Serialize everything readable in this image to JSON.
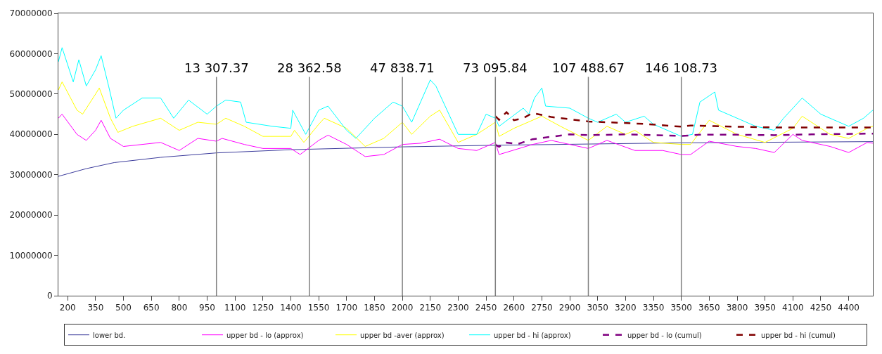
{
  "chart_data": {
    "type": "line",
    "xlim": [
      150,
      4530
    ],
    "xticks": [
      200,
      350,
      500,
      650,
      800,
      950,
      1100,
      1250,
      1400,
      1550,
      1700,
      1850,
      2000,
      2150,
      2300,
      2450,
      2600,
      2750,
      2900,
      3050,
      3200,
      3350,
      3500,
      3650,
      3800,
      3950,
      4100,
      4250,
      4400
    ],
    "ylim": [
      0,
      70000000
    ],
    "yticks": [
      0,
      10000000,
      20000000,
      30000000,
      40000000,
      50000000,
      60000000,
      70000000
    ],
    "legend": "bottom",
    "marker": "none",
    "ref_lines": [
      {
        "axis": "x",
        "value": 1000,
        "color": "#808080"
      },
      {
        "axis": "x",
        "value": 1500,
        "color": "#808080"
      },
      {
        "axis": "x",
        "value": 2000,
        "color": "#808080"
      },
      {
        "axis": "x",
        "value": 2500,
        "color": "#808080"
      },
      {
        "axis": "x",
        "value": 3000,
        "color": "#808080"
      },
      {
        "axis": "x",
        "value": 3500,
        "color": "#808080"
      }
    ],
    "annotations": [
      "13 307.37",
      "28 362.58",
      "47 838.71",
      "73 095.84",
      "107 488.67",
      "146 108.73"
    ],
    "series": [
      {
        "name": "lower bd.",
        "color": "#3c3c9c",
        "line_style": "solid",
        "x": [
          150,
          300,
          450,
          700,
          1000,
          1400,
          2000,
          2500,
          3000,
          3500,
          4530
        ],
        "values": [
          29600000,
          31500000,
          33000000,
          34300000,
          35400000,
          36200000,
          36900000,
          37300000,
          37600000,
          37900000,
          38200000
        ]
      },
      {
        "name": "upper bd - lo (approx)",
        "color": "#ff00ff",
        "line_style": "solid",
        "x": [
          150,
          170,
          250,
          300,
          350,
          380,
          430,
          500,
          700,
          800,
          900,
          1000,
          1030,
          1150,
          1250,
          1400,
          1450,
          1550,
          1600,
          1700,
          1800,
          1900,
          2000,
          2100,
          2200,
          2300,
          2400,
          2500,
          2520,
          2700,
          2800,
          3000,
          3100,
          3250,
          3400,
          3500,
          3550,
          3650,
          3800,
          3900,
          4000,
          4100,
          4150,
          4300,
          4400,
          4500,
          4530
        ],
        "values": [
          44000000,
          45000000,
          40000000,
          38500000,
          41000000,
          43500000,
          39000000,
          37000000,
          38000000,
          36000000,
          39000000,
          38300000,
          39000000,
          37500000,
          36500000,
          36500000,
          35000000,
          38500000,
          39800000,
          37500000,
          34500000,
          35000000,
          37500000,
          37800000,
          38800000,
          36500000,
          36000000,
          38000000,
          35000000,
          37500000,
          38500000,
          36500000,
          38500000,
          36000000,
          36000000,
          35000000,
          35000000,
          38300000,
          37000000,
          36500000,
          35500000,
          40000000,
          38500000,
          37000000,
          35500000,
          38000000,
          37800000
        ]
      },
      {
        "name": "upper bd -aver (approx)",
        "color": "#ffff00",
        "line_style": "solid",
        "x": [
          150,
          170,
          250,
          280,
          350,
          370,
          430,
          470,
          550,
          700,
          800,
          900,
          1000,
          1050,
          1150,
          1250,
          1400,
          1420,
          1470,
          1550,
          1580,
          1700,
          1800,
          1900,
          2000,
          2050,
          2150,
          2200,
          2300,
          2400,
          2500,
          2520,
          2600,
          2700,
          2750,
          2850,
          3000,
          3100,
          3200,
          3250,
          3350,
          3500,
          3550,
          3650,
          3800,
          3950,
          4100,
          4150,
          4300,
          4400,
          4500,
          4530
        ],
        "values": [
          51000000,
          53000000,
          46000000,
          45000000,
          50000000,
          51500000,
          44000000,
          40500000,
          42000000,
          44000000,
          41000000,
          43000000,
          42500000,
          44000000,
          42000000,
          39500000,
          39500000,
          41000000,
          38000000,
          42500000,
          44000000,
          41500000,
          37000000,
          39000000,
          43000000,
          40000000,
          44500000,
          46000000,
          38000000,
          40000000,
          43000000,
          39500000,
          41500000,
          43500000,
          44500000,
          42000000,
          38500000,
          42000000,
          40000000,
          41000000,
          38000000,
          37500000,
          37500000,
          43500000,
          40000000,
          38000000,
          41500000,
          44500000,
          40000000,
          39000000,
          41500000,
          42000000
        ]
      },
      {
        "name": "upper bd - hi (approx)",
        "color": "#00ffff",
        "line_style": "solid",
        "x": [
          150,
          170,
          230,
          260,
          300,
          350,
          380,
          420,
          460,
          500,
          600,
          700,
          770,
          850,
          950,
          1000,
          1050,
          1130,
          1160,
          1300,
          1400,
          1410,
          1480,
          1550,
          1600,
          1700,
          1750,
          1850,
          1950,
          2000,
          2050,
          2150,
          2180,
          2250,
          2300,
          2400,
          2450,
          2500,
          2520,
          2650,
          2680,
          2710,
          2750,
          2770,
          2900,
          3000,
          3050,
          3150,
          3200,
          3300,
          3350,
          3500,
          3560,
          3600,
          3680,
          3700,
          3800,
          3900,
          4000,
          4050,
          4150,
          4250,
          4400,
          4480,
          4530
        ],
        "values": [
          58000000,
          61500000,
          53000000,
          58500000,
          52000000,
          56000000,
          59500000,
          52000000,
          44000000,
          46000000,
          49000000,
          49000000,
          44000000,
          48500000,
          45000000,
          47000000,
          48500000,
          48000000,
          43000000,
          42000000,
          41500000,
          46000000,
          40000000,
          46000000,
          47000000,
          41000000,
          39000000,
          44000000,
          48000000,
          47000000,
          43000000,
          53500000,
          52000000,
          45000000,
          40000000,
          40000000,
          45000000,
          44000000,
          42000000,
          46500000,
          45000000,
          49000000,
          51500000,
          47000000,
          46500000,
          44000000,
          43000000,
          45000000,
          43000000,
          44500000,
          42500000,
          39500000,
          40000000,
          48000000,
          50500000,
          46000000,
          44000000,
          42000000,
          41000000,
          44000000,
          49000000,
          45000000,
          42000000,
          44000000,
          46000000
        ]
      },
      {
        "name": "upper bd - lo (cumul)",
        "color": "#800080",
        "line_style": "dashed",
        "x": [
          2500,
          2520,
          2550,
          2620,
          2700,
          2800,
          2900,
          3000,
          3200,
          3500,
          3600,
          3800,
          4000,
          4200,
          4530
        ],
        "values": [
          37400000,
          36900000,
          38000000,
          37600000,
          38800000,
          39400000,
          40000000,
          39800000,
          40000000,
          39600000,
          39900000,
          39900000,
          39800000,
          40000000,
          40200000
        ]
      },
      {
        "name": "upper bd - hi (cumul)",
        "color": "#800000",
        "line_style": "dashed",
        "x": [
          2500,
          2520,
          2560,
          2600,
          2650,
          2700,
          2800,
          3000,
          3300,
          3500,
          3550,
          3800,
          4000,
          4530
        ],
        "values": [
          44500000,
          43600000,
          45500000,
          43500000,
          44000000,
          45300000,
          44300000,
          43200000,
          42600000,
          41900000,
          42200000,
          41900000,
          41700000,
          41700000
        ]
      }
    ]
  }
}
